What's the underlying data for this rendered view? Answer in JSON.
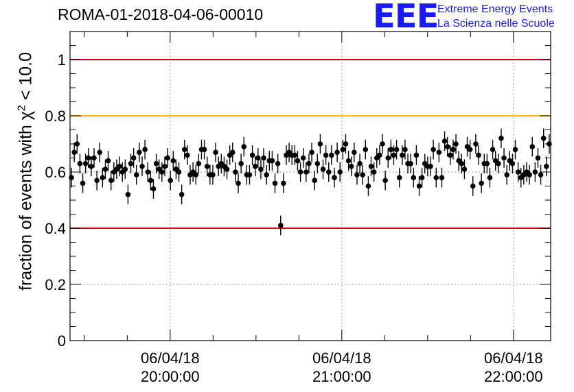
{
  "header": {
    "title": "ROMA-01-2018-04-06-00010",
    "logo_mark": "EEE",
    "logo_line1": "Extreme Energy Events",
    "logo_line2": "La Scienza nelle Scuole"
  },
  "colors": {
    "points": "#000000",
    "red_line": "#e00000",
    "orange_line": "#ffc000",
    "grid": "#9a9a9a",
    "logo": "#1a1aff"
  },
  "chart_data": {
    "type": "scatter",
    "ylabel_prefix": "fraction of events with",
    "ylabel_symbol": "χ",
    "ylabel_sup": "2",
    "ylabel_suffix": "< 10.0",
    "ylim": [
      0,
      1.1
    ],
    "y_ticks": [
      0,
      0.2,
      0.4,
      0.6,
      0.8,
      1
    ],
    "y_tick_labels": [
      "0",
      "0.2",
      "0.4",
      "0.6",
      "0.8",
      "1"
    ],
    "x_range_minutes": [
      0,
      168
    ],
    "x_major_ticks_minutes": [
      35,
      95,
      155
    ],
    "x_tick_labels": [
      {
        "date": "06/04/18",
        "time": "20:00:00"
      },
      {
        "date": "06/04/18",
        "time": "21:00:00"
      },
      {
        "date": "06/04/18",
        "time": "22:00:00"
      }
    ],
    "reference_lines": [
      {
        "y": 1.0,
        "color": "#e00000"
      },
      {
        "y": 0.8,
        "color": "#ffc000"
      },
      {
        "y": 0.4,
        "color": "#e00000"
      }
    ],
    "grid": true,
    "error_bar": 0.035,
    "values": [
      0.58,
      0.67,
      0.7,
      0.63,
      0.56,
      0.63,
      0.65,
      0.62,
      0.65,
      0.57,
      0.67,
      0.58,
      0.61,
      0.64,
      0.57,
      0.6,
      0.61,
      0.62,
      0.6,
      0.61,
      0.52,
      0.63,
      0.65,
      0.59,
      0.67,
      0.62,
      0.68,
      0.6,
      0.57,
      0.54,
      0.63,
      0.61,
      0.6,
      0.62,
      0.65,
      0.57,
      0.64,
      0.61,
      0.6,
      0.52,
      0.68,
      0.66,
      0.59,
      0.6,
      0.59,
      0.63,
      0.68,
      0.68,
      0.62,
      0.59,
      0.59,
      0.67,
      0.62,
      0.63,
      0.62,
      0.61,
      0.66,
      0.67,
      0.6,
      0.56,
      0.63,
      0.69,
      0.59,
      0.59,
      0.66,
      0.62,
      0.65,
      0.61,
      0.65,
      0.59,
      0.64,
      0.64,
      0.56,
      0.63,
      0.41,
      0.56,
      0.66,
      0.67,
      0.66,
      0.66,
      0.64,
      0.6,
      0.65,
      0.6,
      0.63,
      0.67,
      0.57,
      0.63,
      0.7,
      0.61,
      0.66,
      0.6,
      0.66,
      0.58,
      0.67,
      0.6,
      0.68,
      0.7,
      0.64,
      0.62,
      0.67,
      0.59,
      0.63,
      0.59,
      0.68,
      0.55,
      0.62,
      0.6,
      0.65,
      0.66,
      0.7,
      0.57,
      0.65,
      0.68,
      0.66,
      0.68,
      0.58,
      0.66,
      0.68,
      0.63,
      0.63,
      0.58,
      0.66,
      0.55,
      0.58,
      0.63,
      0.62,
      0.62,
      0.68,
      0.58,
      0.67,
      0.58,
      0.71,
      0.69,
      0.66,
      0.68,
      0.7,
      0.64,
      0.63,
      0.61,
      0.69,
      0.68,
      0.55,
      0.7,
      0.66,
      0.56,
      0.63,
      0.63,
      0.58,
      0.68,
      0.64,
      0.63,
      0.72,
      0.65,
      0.59,
      0.64,
      0.63,
      0.68,
      0.6,
      0.58,
      0.59,
      0.6,
      0.59,
      0.69,
      0.6,
      0.65,
      0.59,
      0.72,
      0.62,
      0.7
    ]
  }
}
